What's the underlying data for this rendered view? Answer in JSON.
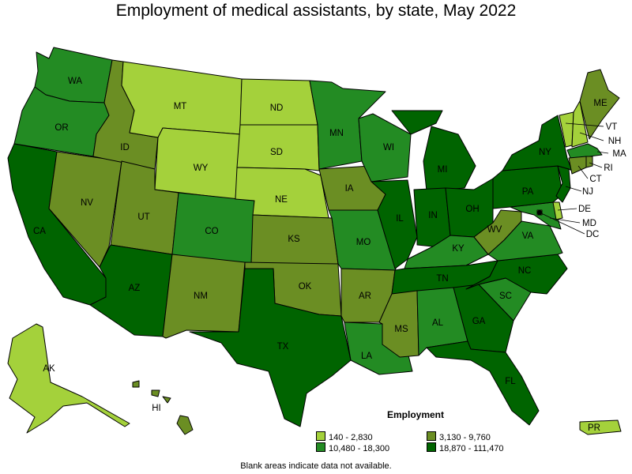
{
  "title": "Employment of medical assistants, by state, May 2022",
  "note": "Blank areas indicate data not available.",
  "legend": {
    "title": "Employment",
    "items": [
      {
        "label": "140 - 2,830",
        "color": "#a4d13b"
      },
      {
        "label": "3,130 - 9,760",
        "color": "#6b8e23"
      },
      {
        "label": "10,480 - 18,300",
        "color": "#238b23"
      },
      {
        "label": "18,870 - 111,470",
        "color": "#006400"
      }
    ]
  },
  "states": [
    {
      "abbr": "WA",
      "tier": 2
    },
    {
      "abbr": "OR",
      "tier": 2
    },
    {
      "abbr": "CA",
      "tier": 3
    },
    {
      "abbr": "NV",
      "tier": 1
    },
    {
      "abbr": "ID",
      "tier": 1
    },
    {
      "abbr": "MT",
      "tier": 0
    },
    {
      "abbr": "WY",
      "tier": 0
    },
    {
      "abbr": "UT",
      "tier": 1
    },
    {
      "abbr": "AZ",
      "tier": 3
    },
    {
      "abbr": "CO",
      "tier": 2
    },
    {
      "abbr": "NM",
      "tier": 1
    },
    {
      "abbr": "ND",
      "tier": 0
    },
    {
      "abbr": "SD",
      "tier": 0
    },
    {
      "abbr": "NE",
      "tier": 0
    },
    {
      "abbr": "KS",
      "tier": 1
    },
    {
      "abbr": "OK",
      "tier": 1
    },
    {
      "abbr": "TX",
      "tier": 3
    },
    {
      "abbr": "MN",
      "tier": 2
    },
    {
      "abbr": "IA",
      "tier": 1
    },
    {
      "abbr": "MO",
      "tier": 2
    },
    {
      "abbr": "AR",
      "tier": 1
    },
    {
      "abbr": "LA",
      "tier": 2
    },
    {
      "abbr": "WI",
      "tier": 2
    },
    {
      "abbr": "IL",
      "tier": 3
    },
    {
      "abbr": "MI",
      "tier": 3
    },
    {
      "abbr": "IN",
      "tier": 3
    },
    {
      "abbr": "OH",
      "tier": 3
    },
    {
      "abbr": "KY",
      "tier": 2
    },
    {
      "abbr": "TN",
      "tier": 3
    },
    {
      "abbr": "MS",
      "tier": 1
    },
    {
      "abbr": "AL",
      "tier": 2
    },
    {
      "abbr": "GA",
      "tier": 3
    },
    {
      "abbr": "FL",
      "tier": 3
    },
    {
      "abbr": "SC",
      "tier": 2
    },
    {
      "abbr": "NC",
      "tier": 3
    },
    {
      "abbr": "VA",
      "tier": 2
    },
    {
      "abbr": "WV",
      "tier": 1
    },
    {
      "abbr": "PA",
      "tier": 3
    },
    {
      "abbr": "NY",
      "tier": 3
    },
    {
      "abbr": "VT",
      "tier": 0
    },
    {
      "abbr": "NH",
      "tier": 0
    },
    {
      "abbr": "ME",
      "tier": 1
    },
    {
      "abbr": "MA",
      "tier": 2
    },
    {
      "abbr": "RI",
      "tier": 1
    },
    {
      "abbr": "CT",
      "tier": 1
    },
    {
      "abbr": "NJ",
      "tier": 3
    },
    {
      "abbr": "DE",
      "tier": 0
    },
    {
      "abbr": "MD",
      "tier": 2
    },
    {
      "abbr": "DC",
      "tier": 0
    },
    {
      "abbr": "AK",
      "tier": 0
    },
    {
      "abbr": "HI",
      "tier": 1
    },
    {
      "abbr": "PR",
      "tier": 0
    }
  ]
}
